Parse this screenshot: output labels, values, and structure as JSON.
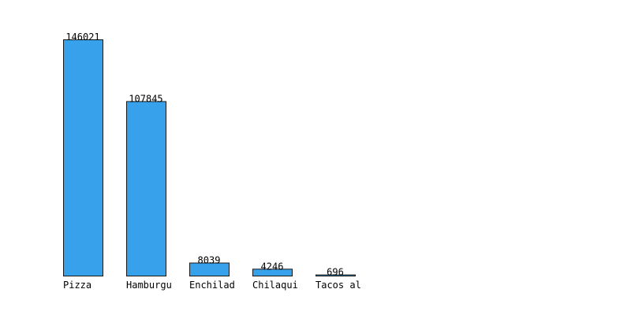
{
  "chart_data": {
    "type": "bar",
    "categories": [
      "Pizza",
      "Hamburgu",
      "Enchilad",
      "Chilaqui",
      "Tacos al"
    ],
    "values": [
      146021,
      107845,
      8039,
      4246,
      696
    ],
    "data_labels": [
      "146021",
      "107845",
      "8039",
      "4246",
      "696"
    ],
    "title": "",
    "xlabel": "",
    "ylabel": "",
    "ylim": [
      0,
      146021
    ],
    "grid": false,
    "legend": "none"
  },
  "colors": {
    "bar_fill": "#37a1eb",
    "bar_stroke": "#1a1a1a",
    "text": "#000000",
    "background": "#ffffff"
  }
}
